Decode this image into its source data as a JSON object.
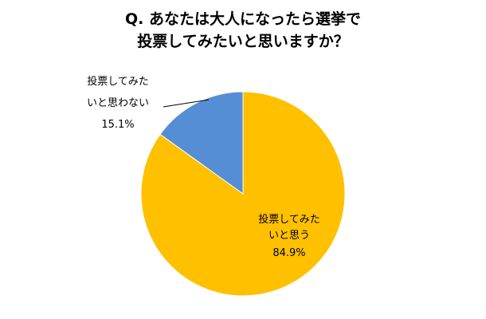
{
  "chart_data": {
    "type": "pie",
    "title": [
      "Q. あなたは大人になったら選挙で",
      "投票してみたいと思いますか？"
    ],
    "slices": [
      {
        "label_lines": [
          "投票してみた",
          "いと思う"
        ],
        "value": 84.9,
        "value_label": "84.9%",
        "color": "#FFC000"
      },
      {
        "label_lines": [
          "投票してみた",
          "いと思わない"
        ],
        "value": 15.1,
        "value_label": "15.1%",
        "color": "#558ED5"
      }
    ],
    "start_angle_deg": 0,
    "direction": "clockwise",
    "legend": "none"
  }
}
